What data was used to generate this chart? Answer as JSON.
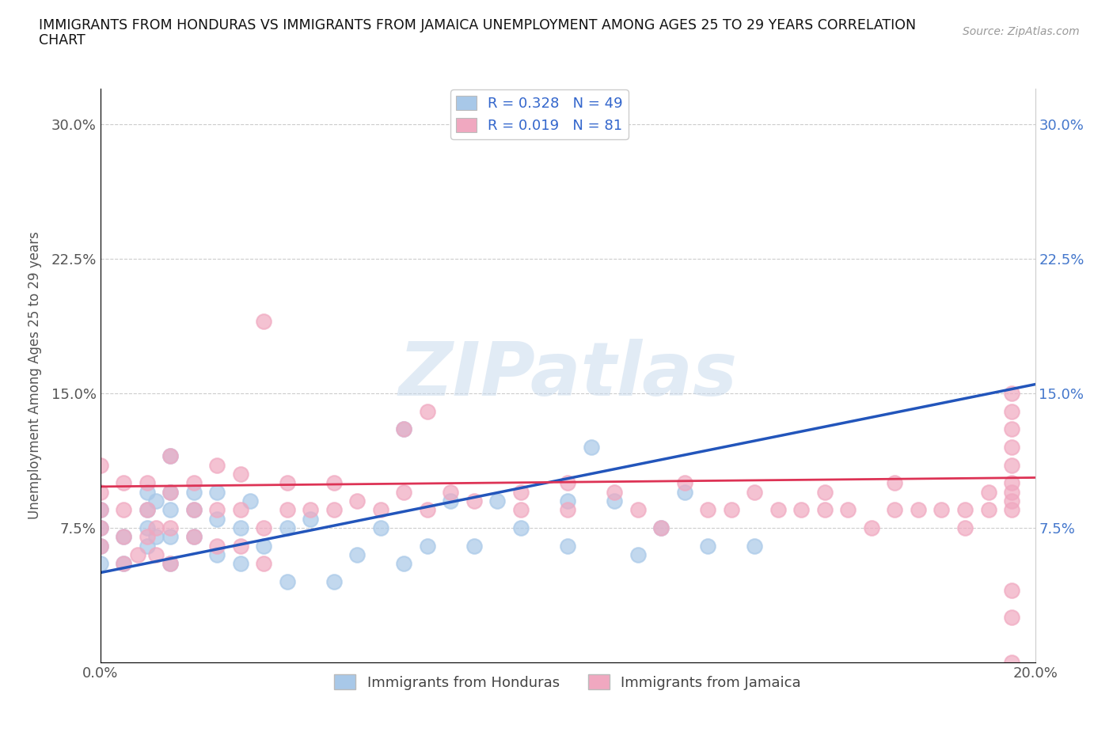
{
  "title_line1": "IMMIGRANTS FROM HONDURAS VS IMMIGRANTS FROM JAMAICA UNEMPLOYMENT AMONG AGES 25 TO 29 YEARS CORRELATION",
  "title_line2": "CHART",
  "source_text": "Source: ZipAtlas.com",
  "ylabel": "Unemployment Among Ages 25 to 29 years",
  "xlim": [
    0.0,
    0.2
  ],
  "ylim": [
    0.0,
    0.32
  ],
  "xticks": [
    0.0,
    0.05,
    0.1,
    0.15,
    0.2
  ],
  "yticks": [
    0.0,
    0.075,
    0.15,
    0.225,
    0.3
  ],
  "xtick_labels": [
    "0.0%",
    "",
    "",
    "",
    "20.0%"
  ],
  "ytick_labels": [
    "",
    "7.5%",
    "15.0%",
    "22.5%",
    "30.0%"
  ],
  "watermark": "ZIPatlas",
  "honduras_color": "#a8c8e8",
  "jamaica_color": "#f0a8c0",
  "trend_honduras_color": "#2255bb",
  "trend_jamaica_color": "#dd3355",
  "grid_color": "#cccccc",
  "background_color": "#ffffff",
  "honduras_trend_x0": 0.0,
  "honduras_trend_y0": 0.05,
  "honduras_trend_x1": 0.2,
  "honduras_trend_y1": 0.155,
  "jamaica_trend_x0": 0.0,
  "jamaica_trend_y0": 0.098,
  "jamaica_trend_x1": 0.2,
  "jamaica_trend_y1": 0.103,
  "honduras_x": [
    0.0,
    0.0,
    0.0,
    0.0,
    0.005,
    0.005,
    0.01,
    0.01,
    0.01,
    0.01,
    0.012,
    0.012,
    0.015,
    0.015,
    0.015,
    0.015,
    0.015,
    0.02,
    0.02,
    0.02,
    0.025,
    0.025,
    0.025,
    0.03,
    0.03,
    0.032,
    0.035,
    0.04,
    0.04,
    0.045,
    0.05,
    0.055,
    0.06,
    0.065,
    0.065,
    0.07,
    0.075,
    0.08,
    0.085,
    0.09,
    0.1,
    0.1,
    0.105,
    0.11,
    0.115,
    0.12,
    0.125,
    0.13,
    0.14
  ],
  "honduras_y": [
    0.055,
    0.065,
    0.075,
    0.085,
    0.055,
    0.07,
    0.065,
    0.075,
    0.085,
    0.095,
    0.07,
    0.09,
    0.055,
    0.07,
    0.085,
    0.095,
    0.115,
    0.07,
    0.085,
    0.095,
    0.06,
    0.08,
    0.095,
    0.055,
    0.075,
    0.09,
    0.065,
    0.045,
    0.075,
    0.08,
    0.045,
    0.06,
    0.075,
    0.055,
    0.13,
    0.065,
    0.09,
    0.065,
    0.09,
    0.075,
    0.065,
    0.09,
    0.12,
    0.09,
    0.06,
    0.075,
    0.095,
    0.065,
    0.065
  ],
  "jamaica_x": [
    0.0,
    0.0,
    0.0,
    0.0,
    0.0,
    0.005,
    0.005,
    0.005,
    0.005,
    0.008,
    0.01,
    0.01,
    0.01,
    0.012,
    0.012,
    0.015,
    0.015,
    0.015,
    0.015,
    0.02,
    0.02,
    0.02,
    0.025,
    0.025,
    0.025,
    0.03,
    0.03,
    0.03,
    0.035,
    0.035,
    0.035,
    0.04,
    0.04,
    0.045,
    0.05,
    0.05,
    0.055,
    0.06,
    0.065,
    0.065,
    0.07,
    0.07,
    0.075,
    0.08,
    0.09,
    0.09,
    0.1,
    0.1,
    0.11,
    0.115,
    0.12,
    0.125,
    0.13,
    0.135,
    0.14,
    0.145,
    0.15,
    0.155,
    0.155,
    0.16,
    0.165,
    0.17,
    0.17,
    0.175,
    0.18,
    0.185,
    0.185,
    0.19,
    0.19,
    0.195,
    0.195,
    0.195,
    0.195,
    0.195,
    0.195,
    0.195,
    0.195,
    0.195,
    0.195,
    0.195,
    0.195
  ],
  "jamaica_y": [
    0.065,
    0.075,
    0.085,
    0.095,
    0.11,
    0.055,
    0.07,
    0.085,
    0.1,
    0.06,
    0.07,
    0.085,
    0.1,
    0.06,
    0.075,
    0.055,
    0.075,
    0.095,
    0.115,
    0.07,
    0.085,
    0.1,
    0.065,
    0.085,
    0.11,
    0.065,
    0.085,
    0.105,
    0.055,
    0.075,
    0.19,
    0.085,
    0.1,
    0.085,
    0.085,
    0.1,
    0.09,
    0.085,
    0.095,
    0.13,
    0.085,
    0.14,
    0.095,
    0.09,
    0.085,
    0.095,
    0.085,
    0.1,
    0.095,
    0.085,
    0.075,
    0.1,
    0.085,
    0.085,
    0.095,
    0.085,
    0.085,
    0.085,
    0.095,
    0.085,
    0.075,
    0.085,
    0.1,
    0.085,
    0.085,
    0.075,
    0.085,
    0.095,
    0.085,
    0.025,
    0.085,
    0.095,
    0.1,
    0.11,
    0.12,
    0.13,
    0.14,
    0.15,
    0.09,
    0.04,
    0.0
  ]
}
